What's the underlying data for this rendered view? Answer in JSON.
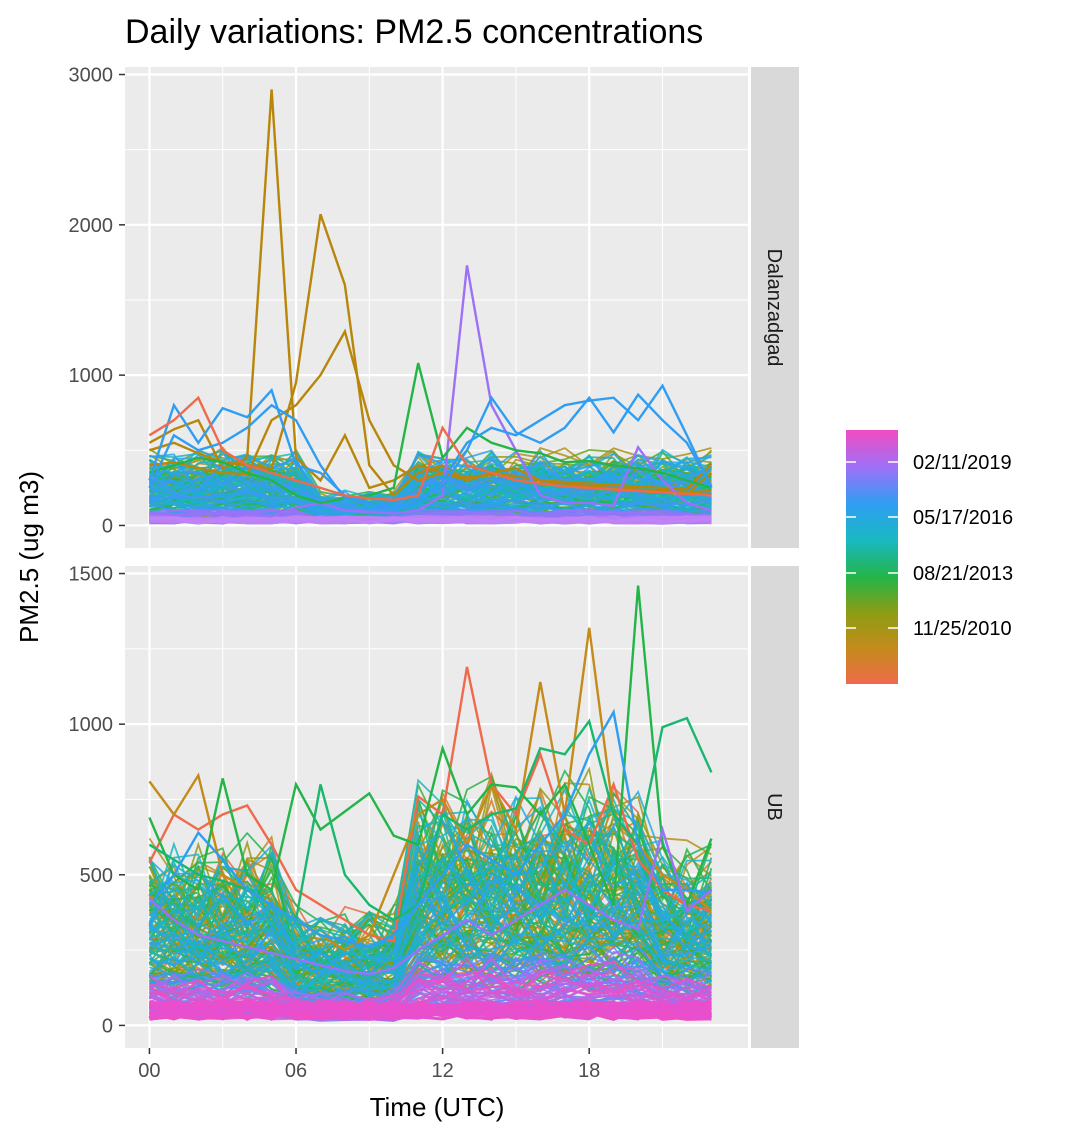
{
  "chart_data": {
    "type": "line",
    "title": "Daily variations: PM2.5 concentrations",
    "xlabel": "Time (UTC)",
    "ylabel": "PM2.5 (ug m3)",
    "x_ticks": [
      "00",
      "06",
      "12",
      "18"
    ],
    "x_tick_values": [
      0,
      6,
      12,
      18
    ],
    "xlim": [
      -1,
      24.5
    ],
    "grid": true,
    "legend": {
      "position": "right",
      "type": "colorbar",
      "labels": [
        "02/11/2019",
        "05/17/2016",
        "08/21/2013",
        "11/25/2010"
      ],
      "colors": [
        "#f24cc2",
        "#9c71f8",
        "#2f9ef2",
        "#19b8c4",
        "#23b548",
        "#8d9d14",
        "#c48b1b",
        "#ef6a4c"
      ]
    },
    "panels": [
      {
        "strip": "Dalanzadgad",
        "ylim": [
          -150,
          3050
        ],
        "y_ticks": [
          0,
          1000,
          2000,
          3000
        ],
        "highlighted_series": [
          {
            "color": "#b8860b",
            "x": [
              0,
              1,
              2,
              3,
              4,
              5,
              6,
              7,
              8,
              9,
              10,
              11,
              12,
              13,
              14,
              15,
              16,
              17,
              18,
              19,
              20,
              21,
              22,
              23
            ],
            "y": [
              550,
              640,
              700,
              380,
              450,
              2900,
              450,
              300,
              600,
              250,
              300,
              400,
              350,
              300,
              350,
              300,
              280,
              260,
              250,
              240,
              230,
              220,
              210,
              350
            ]
          },
          {
            "color": "#b8860b",
            "x": [
              0,
              1,
              2,
              3,
              4,
              5,
              6,
              7,
              8,
              9,
              10,
              11,
              12,
              13,
              14,
              15,
              16,
              17,
              18,
              19,
              20,
              21,
              22,
              23
            ],
            "y": [
              500,
              550,
              480,
              420,
              400,
              380,
              950,
              2070,
              1600,
              400,
              200,
              350,
              400,
              300,
              350,
              380,
              300,
              280,
              260,
              250,
              240,
              230,
              220,
              230
            ]
          },
          {
            "color": "#b8860b",
            "x": [
              0,
              1,
              2,
              3,
              4,
              5,
              6,
              7,
              8,
              9,
              10,
              11,
              12,
              13,
              14,
              15,
              16,
              17,
              18,
              19,
              20,
              21,
              22,
              23
            ],
            "y": [
              400,
              420,
              380,
              350,
              340,
              700,
              800,
              1000,
              1290,
              700,
              400,
              300,
              350,
              320,
              340,
              330,
              300,
              290,
              280,
              270,
              260,
              250,
              240,
              410
            ]
          },
          {
            "color": "#9c71f8",
            "x": [
              0,
              1,
              2,
              3,
              4,
              5,
              6,
              7,
              8,
              9,
              10,
              11,
              12,
              13,
              14,
              15,
              16,
              17,
              18,
              19,
              20,
              21,
              22,
              23
            ],
            "y": [
              80,
              70,
              75,
              80,
              70,
              60,
              120,
              150,
              100,
              90,
              80,
              100,
              200,
              1730,
              800,
              500,
              200,
              150,
              150,
              130,
              520,
              300,
              150,
              100
            ]
          },
          {
            "color": "#23b548",
            "x": [
              0,
              1,
              2,
              3,
              4,
              5,
              6,
              7,
              8,
              9,
              10,
              11,
              12,
              13,
              14,
              15,
              16,
              17,
              18,
              19,
              20,
              21,
              22,
              23
            ],
            "y": [
              350,
              400,
              450,
              420,
              350,
              300,
              200,
              150,
              180,
              200,
              250,
              1080,
              450,
              650,
              550,
              500,
              480,
              420,
              430,
              400,
              380,
              350,
              300,
              250
            ]
          },
          {
            "color": "#2f9ef2",
            "x": [
              0,
              1,
              2,
              3,
              4,
              5,
              6,
              7,
              8,
              9,
              10,
              11,
              12,
              13,
              14,
              15,
              16,
              17,
              18,
              19,
              20,
              21,
              22,
              23
            ],
            "y": [
              300,
              800,
              550,
              780,
              720,
              900,
              400,
              350,
              200,
              150,
              120,
              150,
              300,
              550,
              650,
              600,
              700,
              800,
              830,
              850,
              700,
              930,
              600,
              250
            ]
          },
          {
            "color": "#2f9ef2",
            "x": [
              0,
              1,
              2,
              3,
              4,
              5,
              6,
              7,
              8,
              9,
              10,
              11,
              12,
              13,
              14,
              15,
              16,
              17,
              18,
              19,
              20,
              21,
              22,
              23
            ],
            "y": [
              250,
              600,
              500,
              550,
              650,
              800,
              700,
              400,
              180,
              140,
              110,
              180,
              260,
              500,
              850,
              620,
              550,
              650,
              850,
              620,
              870,
              700,
              550,
              260
            ]
          },
          {
            "color": "#ef6a4c",
            "x": [
              0,
              1,
              2,
              3,
              4,
              5,
              6,
              7,
              8,
              9,
              10,
              11,
              12,
              13,
              14,
              15,
              16,
              17,
              18,
              19,
              20,
              21,
              22,
              23
            ],
            "y": [
              600,
              700,
              850,
              500,
              400,
              350,
              300,
              250,
              200,
              180,
              170,
              200,
              650,
              400,
              350,
              300,
              280,
              260,
              250,
              240,
              230,
              220,
              210,
              200
            ]
          }
        ]
      },
      {
        "strip": "UB",
        "ylim": [
          -75,
          1525
        ],
        "y_ticks": [
          0,
          500,
          1000,
          1500
        ],
        "highlighted_series": [
          {
            "color": "#ef6a4c",
            "x": [
              0,
              1,
              2,
              3,
              4,
              5,
              6,
              7,
              8,
              9,
              10,
              11,
              12,
              13,
              14,
              15,
              16,
              17,
              18,
              19,
              20,
              21,
              22,
              23
            ],
            "y": [
              540,
              700,
              650,
              700,
              730,
              600,
              450,
              400,
              350,
              300,
              280,
              760,
              700,
              1190,
              800,
              700,
              900,
              650,
              600,
              800,
              550,
              450,
              400,
              380
            ]
          },
          {
            "color": "#c48b1b",
            "x": [
              0,
              1,
              2,
              3,
              4,
              5,
              6,
              7,
              8,
              9,
              10,
              11,
              12,
              13,
              14,
              15,
              16,
              17,
              18,
              19,
              20,
              21,
              22,
              23
            ],
            "y": [
              810,
              700,
              830,
              500,
              450,
              400,
              350,
              300,
              250,
              300,
              500,
              700,
              750,
              600,
              800,
              650,
              1140,
              700,
              1320,
              700,
              600,
              500,
              450,
              380
            ]
          },
          {
            "color": "#23b548",
            "x": [
              0,
              1,
              2,
              3,
              4,
              5,
              6,
              7,
              8,
              9,
              10,
              11,
              12,
              13,
              14,
              15,
              16,
              17,
              18,
              19,
              20,
              21,
              22,
              23
            ],
            "y": [
              690,
              500,
              450,
              820,
              500,
              450,
              800,
              650,
              710,
              770,
              630,
              600,
              920,
              700,
              800,
              790,
              700,
              800,
              600,
              400,
              1460,
              600,
              400,
              620
            ]
          },
          {
            "color": "#19b86e",
            "x": [
              0,
              1,
              2,
              3,
              4,
              5,
              6,
              7,
              8,
              9,
              10,
              11,
              12,
              13,
              14,
              15,
              16,
              17,
              18,
              19,
              20,
              21,
              22,
              23
            ],
            "y": [
              600,
              550,
              500,
              480,
              450,
              400,
              350,
              800,
              500,
              400,
              350,
              400,
              700,
              650,
              700,
              720,
              920,
              900,
              1010,
              700,
              600,
              990,
              1020,
              840
            ]
          },
          {
            "color": "#2f9ef2",
            "x": [
              0,
              1,
              2,
              3,
              4,
              5,
              6,
              7,
              8,
              9,
              10,
              11,
              12,
              13,
              14,
              15,
              16,
              17,
              18,
              19,
              20,
              21,
              22,
              23
            ],
            "y": [
              400,
              500,
              640,
              550,
              450,
              400,
              350,
              300,
              280,
              260,
              300,
              400,
              500,
              600,
              550,
              500,
              600,
              700,
              900,
              1040,
              600,
              450,
              450,
              440
            ]
          },
          {
            "color": "#9c71f8",
            "x": [
              0,
              1,
              2,
              3,
              4,
              5,
              6,
              7,
              8,
              9,
              10,
              11,
              12,
              13,
              14,
              15,
              16,
              17,
              18,
              19,
              20,
              21,
              22,
              23
            ],
            "y": [
              420,
              350,
              300,
              280,
              260,
              240,
              220,
              200,
              180,
              170,
              190,
              250,
              300,
              350,
              300,
              350,
              400,
              450,
              400,
              350,
              320,
              650,
              380,
              450
            ]
          }
        ]
      }
    ]
  }
}
